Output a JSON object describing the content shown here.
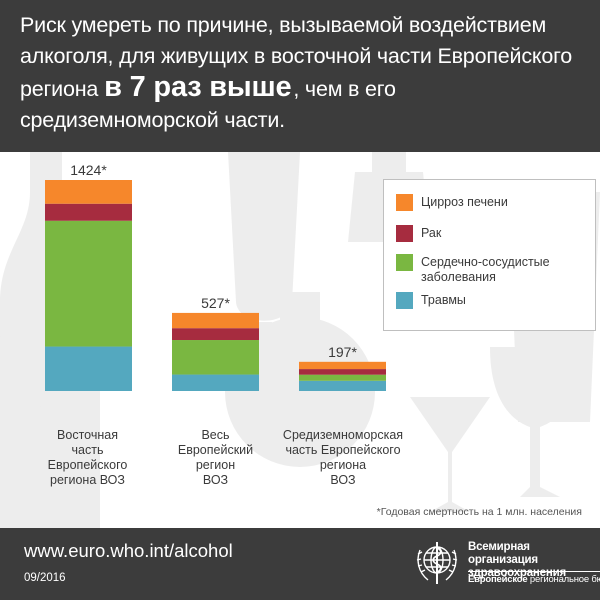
{
  "headline": {
    "before": "Риск умереть по причине, вызываемой воздействием алкоголя, для живущих в восточной части Европейского региона",
    "emphasis": "в 7 раз выше",
    "after": ", чем в его средиземноморской части."
  },
  "colors": {
    "header_bg": "#3c3c3c",
    "liver": "#f6872b",
    "cancer": "#a62c3f",
    "cardio": "#7ab741",
    "injuries": "#54a8bf",
    "background_icons": "#ededed"
  },
  "chart_data": {
    "type": "bar",
    "stacked": true,
    "categories": [
      "Восточная часть Европейского региона ВОЗ",
      "Весь Европейский регион ВОЗ",
      "Средиземноморская часть Европейского региона ВОЗ"
    ],
    "category_labels": [
      [
        "Восточная",
        "часть",
        "Европейского",
        "региона ВОЗ"
      ],
      [
        "Весь",
        "Европейский",
        "регион",
        "ВОЗ"
      ],
      [
        "Средиземноморская",
        "часть Европейского",
        "региона",
        "ВОЗ"
      ]
    ],
    "totals": [
      1424,
      527,
      197
    ],
    "total_labels": [
      "1424*",
      "527*",
      "197*"
    ],
    "series": [
      {
        "name": "Цирроз печени",
        "key": "liver",
        "values": [
          160,
          103,
          49
        ]
      },
      {
        "name": "Рак",
        "key": "cancer",
        "values": [
          115,
          80,
          38
        ]
      },
      {
        "name": "Сердечно-сосудистые заболевания",
        "key": "cardio",
        "values": [
          849,
          233,
          41
        ]
      },
      {
        "name": "Травмы",
        "key": "injuries",
        "values": [
          300,
          111,
          69
        ]
      }
    ],
    "ylim": [
      0,
      1424
    ],
    "legend": {
      "position": "top-right",
      "items": [
        {
          "key": "liver",
          "label": "Цирроз печени"
        },
        {
          "key": "cancer",
          "label": "Рак"
        },
        {
          "key": "cardio",
          "label": "Сердечно-сосудистые заболевания"
        },
        {
          "key": "injuries",
          "label": "Травмы"
        }
      ]
    },
    "footnote": "*Годовая смертность на 1 млн. населения",
    "grid": false
  },
  "footer": {
    "url": "www.euro.who.int/alcohol",
    "date": "09/2016",
    "org_name": "Всемирная организация здравоохранения",
    "region_bold": "Европейское",
    "region_rest": "региональное бюро",
    "emblem_icon": "who-emblem-icon"
  }
}
